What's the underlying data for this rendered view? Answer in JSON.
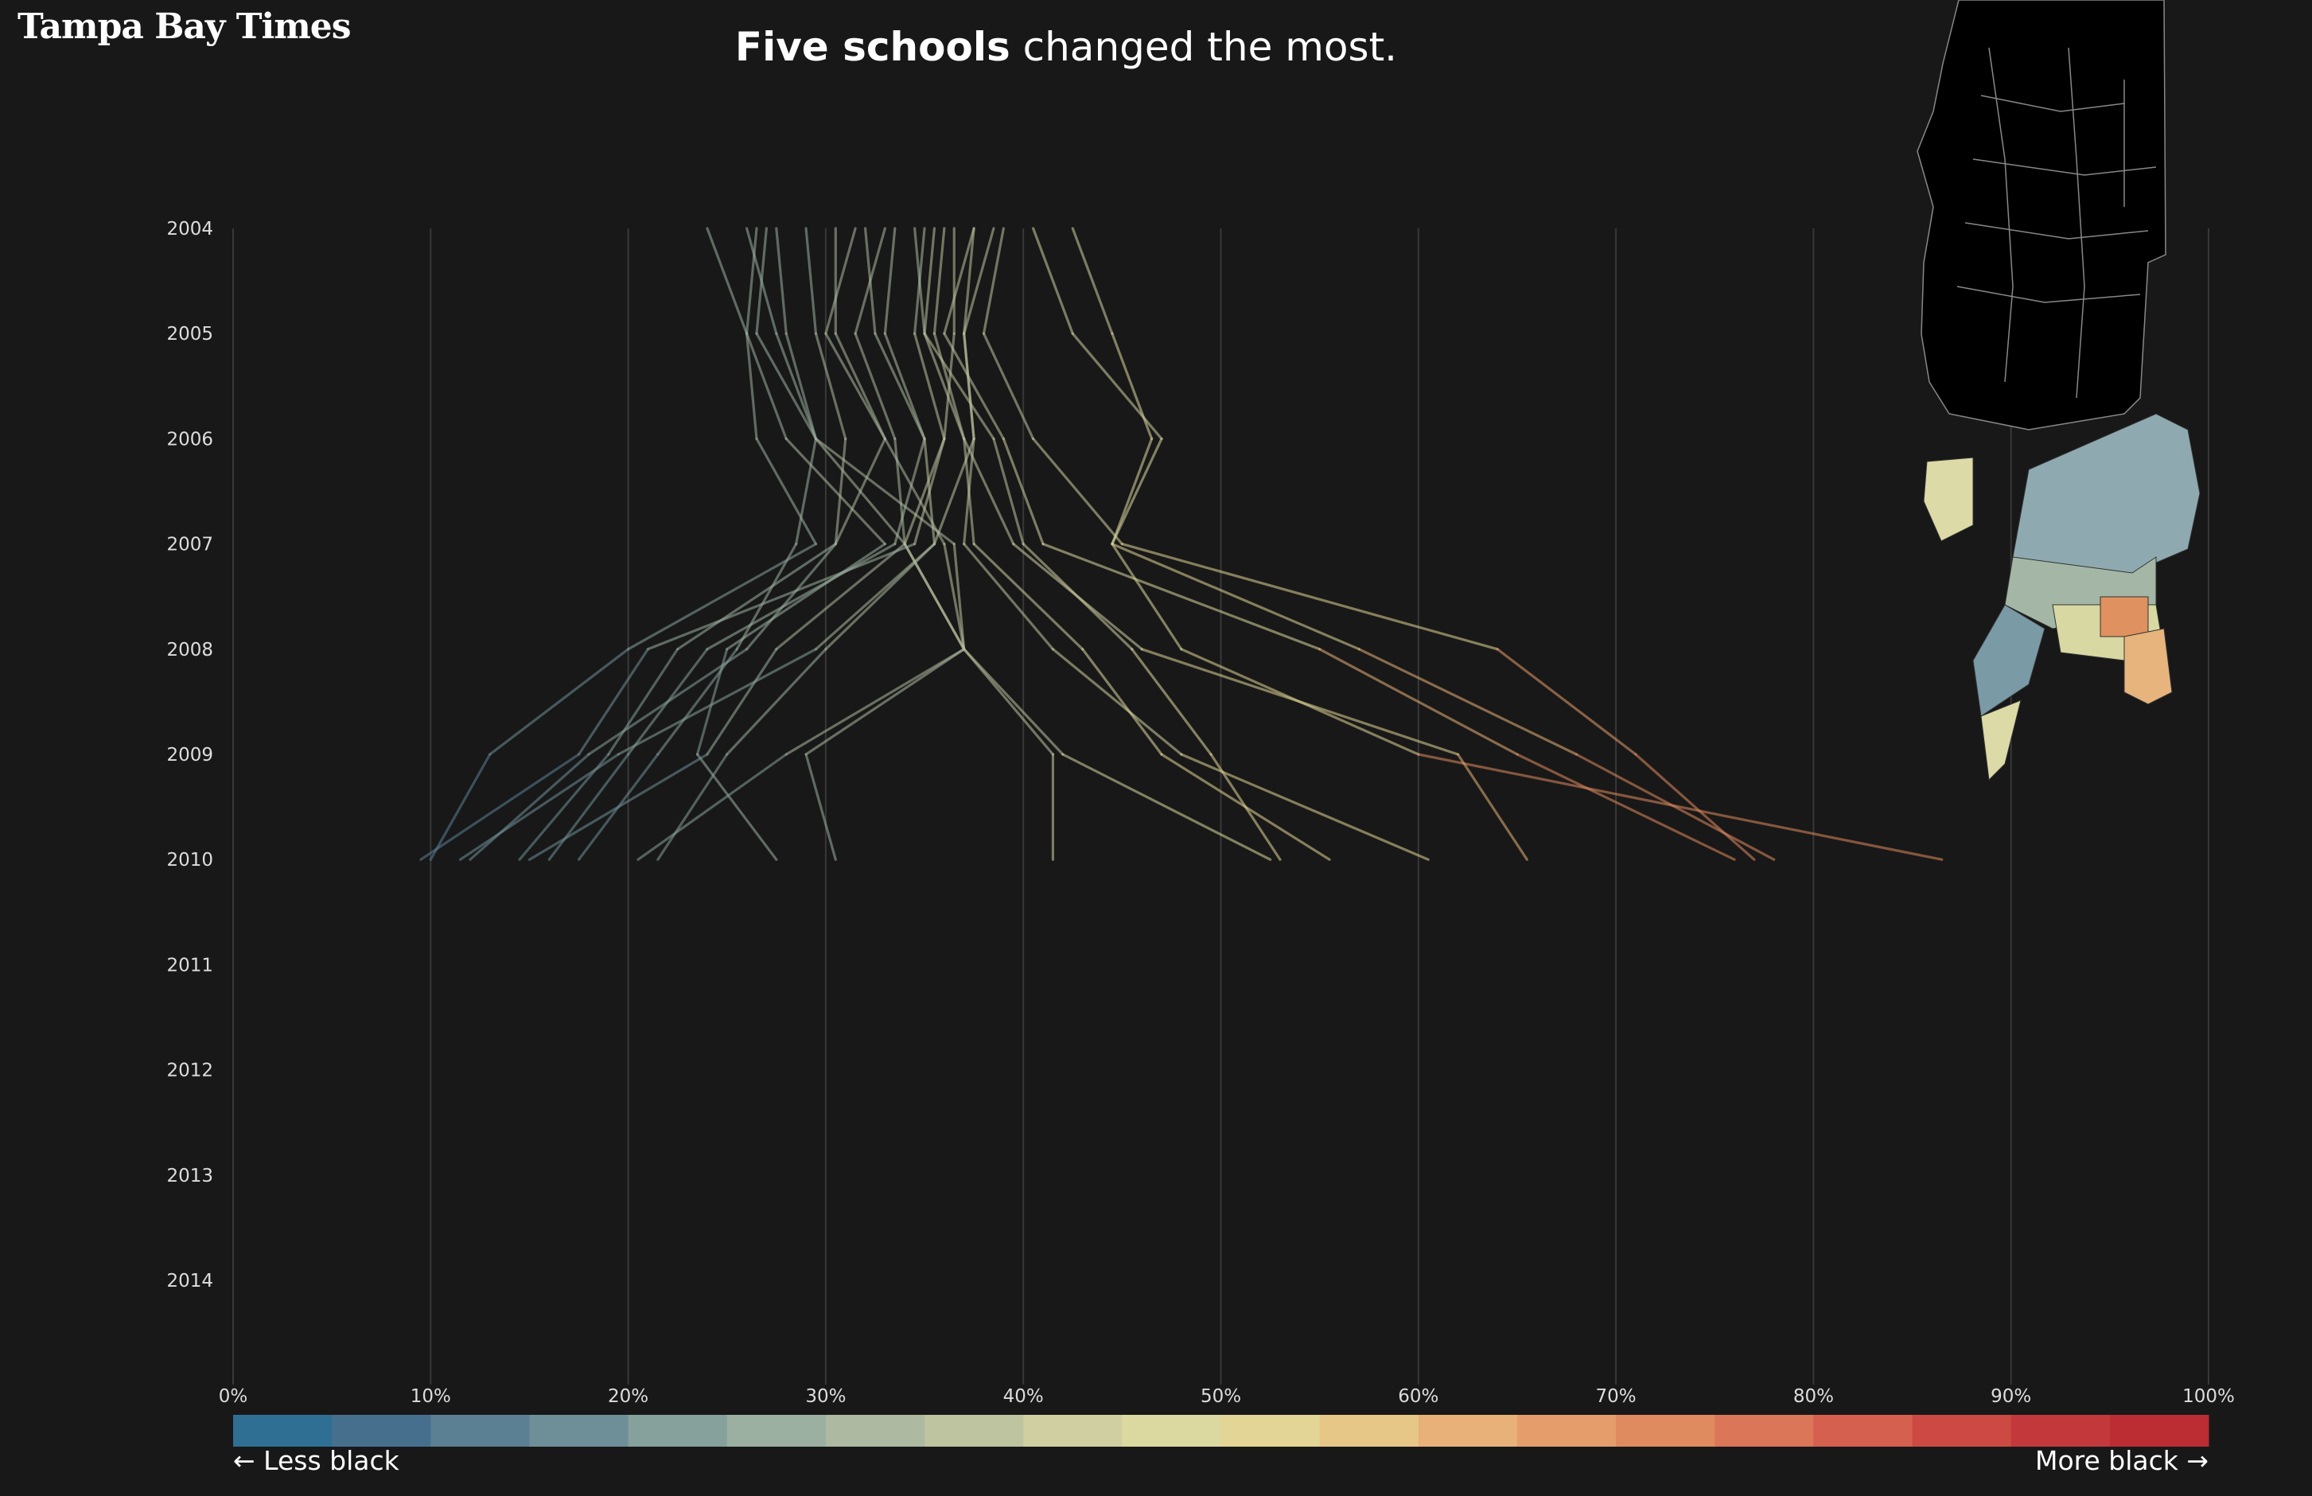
{
  "brand": "Tampa Bay Times",
  "headline": {
    "bold": "Five schools",
    "rest": " changed the most."
  },
  "legend": {
    "left": "← Less black",
    "right": "More black →"
  },
  "colors": {
    "background": "#181818",
    "scale": [
      "#2f6f94",
      "#466f8e",
      "#5b8094",
      "#6f8f98",
      "#86a09b",
      "#9bb0a0",
      "#adb9a0",
      "#bec4a0",
      "#cfcfa2",
      "#dcd9a0",
      "#e2d596",
      "#e7c788",
      "#e8b179",
      "#e59d6c",
      "#e08a5f",
      "#dc7658",
      "#d6604f",
      "#cc4a43",
      "#c3383b",
      "#bb2c33"
    ]
  },
  "chart_data": {
    "type": "line",
    "title": "Five schools changed the most.",
    "y_categories": [
      "2004",
      "2005",
      "2006",
      "2007",
      "2008",
      "2009",
      "2010",
      "2011",
      "2012",
      "2013",
      "2014"
    ],
    "x_ticks": [
      "0%",
      "10%",
      "20%",
      "30%",
      "40%",
      "50%",
      "60%",
      "70%",
      "80%",
      "90%",
      "100%"
    ],
    "xlim": [
      0,
      100
    ],
    "grid": true,
    "note": "",
    "series": [
      {
        "values": [
          42.5,
          44.5,
          46.5,
          44.5,
          48,
          60,
          86.5
        ]
      },
      {
        "values": [
          40.5,
          42.5,
          47,
          44.5,
          57,
          68,
          78
        ]
      },
      {
        "values": [
          39,
          38,
          40.5,
          45,
          64,
          71,
          77
        ]
      },
      {
        "values": [
          37.5,
          36,
          39,
          41,
          55,
          65,
          76
        ]
      },
      {
        "values": [
          36,
          35.5,
          37,
          39.5,
          46,
          62,
          65.5
        ]
      },
      {
        "values": [
          37.5,
          37,
          37.5,
          37,
          41.5,
          48,
          60.5
        ]
      },
      {
        "values": [
          35.5,
          35,
          38.5,
          40,
          45.5,
          49.5,
          53
        ]
      },
      {
        "values": [
          34.5,
          35,
          37,
          37.5,
          43,
          47,
          55.5
        ]
      },
      {
        "values": [
          33,
          31.5,
          33.5,
          34,
          37,
          42,
          52.5
        ]
      },
      {
        "values": [
          27,
          26.5,
          29.5,
          34,
          37,
          41.5,
          41.5
        ]
      },
      {
        "values": [
          26,
          27.5,
          29.5,
          36.5,
          37,
          29,
          30.5
        ]
      },
      {
        "values": [
          26.5,
          26,
          28,
          33,
          25,
          23.5,
          27.5
        ]
      },
      {
        "values": [
          30.5,
          30.5,
          33,
          36,
          37,
          28,
          20.5
        ]
      },
      {
        "values": [
          32,
          32.5,
          35,
          35.5,
          30,
          25,
          21.5
        ]
      },
      {
        "values": [
          27.5,
          28,
          29.5,
          28.5,
          25.5,
          21.5,
          17.5
        ]
      },
      {
        "values": [
          31.5,
          30,
          33,
          30.5,
          22.5,
          19,
          14.5
        ]
      },
      {
        "values": [
          33.5,
          33,
          35,
          33.5,
          24,
          20,
          16
        ]
      },
      {
        "values": [
          35,
          34.5,
          36,
          34,
          27.5,
          24,
          15
        ]
      },
      {
        "values": [
          38.5,
          37,
          37.5,
          35.5,
          29.5,
          19.5,
          11.5
        ]
      },
      {
        "values": [
          36.5,
          36.5,
          36,
          34.5,
          21,
          17.5,
          9.5
        ]
      },
      {
        "values": [
          24,
          26,
          26.5,
          29.5,
          20,
          13,
          10
        ]
      },
      {
        "values": [
          29,
          29.5,
          31,
          30.5,
          26,
          18,
          12
        ]
      }
    ]
  }
}
